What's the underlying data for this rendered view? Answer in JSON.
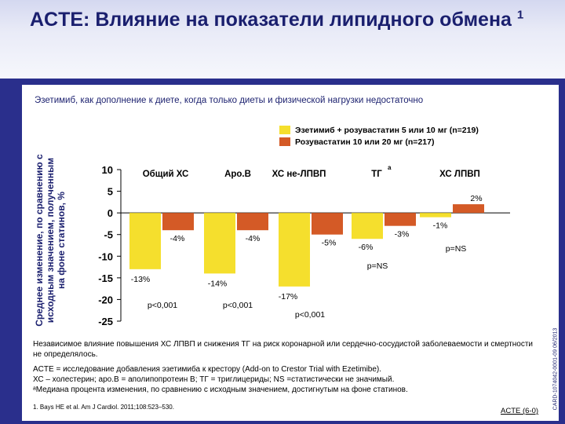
{
  "title": "ACTE: Влияние на показатели липидного обмена",
  "title_sup": "1",
  "subtitle": "Эзетимиб, как дополнение к диете, когда только диеты и физической нагрузки недостаточно",
  "chart_data": {
    "type": "bar",
    "ylabel": "Среднее изменение, по сравнению с исходным значением, полученным на фоне статинов, %",
    "ylim": [
      -25,
      10
    ],
    "yticks": [
      10,
      5,
      0,
      -5,
      -10,
      -15,
      -20,
      -25
    ],
    "categories": [
      "Общий ХС",
      "Apo.B",
      "ХС не-ЛПВП",
      "ТГ",
      "ХС ЛПВП"
    ],
    "category_sup": [
      "",
      "",
      "",
      "a",
      ""
    ],
    "series": [
      {
        "name": "Эзетимиб + розувастатин 5 или 10 мг (n=219)",
        "color": "#f5df2d",
        "values": [
          -13,
          -14,
          -17,
          -6,
          -1
        ],
        "labels": [
          "-13%",
          "-14%",
          "-17%",
          "-6%",
          "-1%"
        ]
      },
      {
        "name": "Розувастатин 10 или 20 мг (n=217)",
        "color": "#d45a26",
        "values": [
          -4,
          -4,
          -5,
          -3,
          2
        ],
        "labels": [
          "-4%",
          "-4%",
          "-5%",
          "-3%",
          "2%"
        ]
      }
    ],
    "pvalues": [
      "p<0,001",
      "p<0,001",
      "p<0,001",
      "p=NS",
      "p=NS"
    ],
    "legend_position": "top-right",
    "grid": false
  },
  "notes": [
    "Независимое влияние повышения ХС ЛПВП и снижения ТГ на риск коронарной или сердечно-сосудистой заболеваемости и смертности не определялось.",
    "ACTE = исследование добавления эзетимиба к крестору  (Add-on to Crestor Trial with Ezetimibe).",
    "ХС – холестерин; apo.B = аполипопротеин B; ТГ = триглицериды; NS =статистически не значимый.",
    "ᵃМедиана процента изменения, по сравнению с исходным значением, достигнутым на фоне статинов."
  ],
  "reference": "1. Bays HE et al. Am J Cardiol. 2011;108:523–530.",
  "slide_id": "ACTE (6-0)",
  "side_code": "CARD-1074042-0001-09 06/2013"
}
